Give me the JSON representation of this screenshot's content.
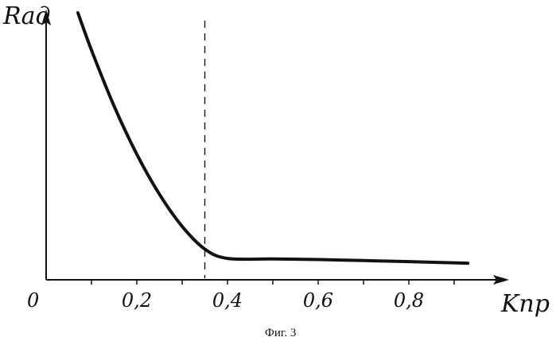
{
  "chart_data": {
    "type": "line",
    "title": "",
    "caption": "Фиг. 3",
    "xlabel": "Kпр",
    "ylabel": "Rад",
    "origin_label": "0",
    "x_tick_labels": [
      "0,2",
      "0,4",
      "0,6",
      "0,8"
    ],
    "x_ticks": [
      0.2,
      0.4,
      0.6,
      0.8
    ],
    "xlim": [
      0,
      1.0
    ],
    "y_ticks_shown": false,
    "grid": false,
    "legend": "none",
    "reference_line": {
      "x": 0.35,
      "style": "dashed",
      "label": ""
    },
    "series": [
      {
        "name": "",
        "x": [
          0.07,
          0.1,
          0.15,
          0.2,
          0.25,
          0.3,
          0.35,
          0.4,
          0.5,
          0.6,
          0.7,
          0.8,
          0.93
        ],
        "y": [
          10.0,
          8.6,
          6.5,
          4.7,
          3.2,
          2.0,
          1.15,
          0.8,
          0.78,
          0.76,
          0.72,
          0.68,
          0.62
        ]
      }
    ]
  }
}
